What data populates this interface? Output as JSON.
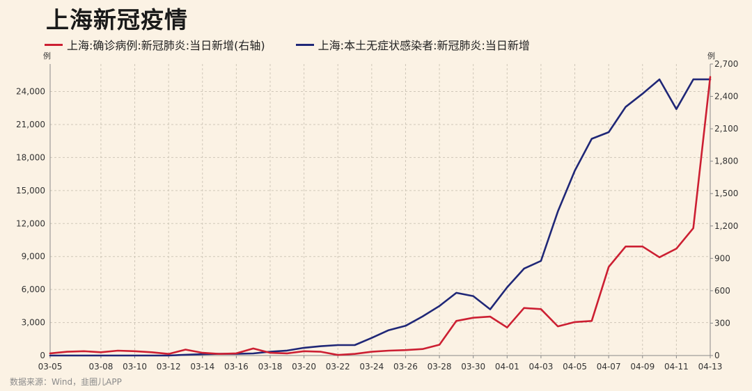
{
  "title": "上海新冠疫情",
  "source": "数据来源：Wind，韭圈儿APP",
  "colors": {
    "red": "#cc1f32",
    "blue": "#1f2777",
    "grid": "#cfc7b8",
    "text": "#333333",
    "background": "#fbf2e4"
  },
  "chart_data": {
    "type": "line",
    "title": "上海新冠疫情",
    "legend_position": "top-left",
    "grid": true,
    "x": [
      "03-05",
      "03-06",
      "03-07",
      "03-08",
      "03-09",
      "03-10",
      "03-11",
      "03-12",
      "03-13",
      "03-14",
      "03-15",
      "03-16",
      "03-17",
      "03-18",
      "03-19",
      "03-20",
      "03-21",
      "03-22",
      "03-23",
      "03-24",
      "03-25",
      "03-26",
      "03-27",
      "03-28",
      "03-29",
      "03-30",
      "03-31",
      "04-01",
      "04-02",
      "04-03",
      "04-04",
      "04-05",
      "04-06",
      "04-07",
      "04-08",
      "04-09",
      "04-10",
      "04-11",
      "04-12",
      "04-13"
    ],
    "xticks": [
      "03-05",
      "03-08",
      "03-10",
      "03-12",
      "03-14",
      "03-16",
      "03-18",
      "03-20",
      "03-22",
      "03-24",
      "03-26",
      "03-28",
      "03-30",
      "04-01",
      "04-03",
      "04-05",
      "04-07",
      "04-09",
      "04-11",
      "04-13"
    ],
    "y_left": {
      "unit": "例",
      "ylim": [
        0,
        26500
      ],
      "ticks": [
        0,
        3000,
        6000,
        9000,
        12000,
        15000,
        18000,
        21000,
        24000
      ],
      "tick_labels": [
        "0",
        "3,000",
        "6,000",
        "9,000",
        "12,000",
        "15,000",
        "18,000",
        "21,000",
        "24,000"
      ]
    },
    "y_right": {
      "unit": "例",
      "ylim": [
        0,
        2700
      ],
      "ticks": [
        0,
        300,
        600,
        900,
        1200,
        1500,
        1800,
        2100,
        2400,
        2700
      ],
      "tick_labels": [
        "0",
        "300",
        "600",
        "900",
        "1,200",
        "1,500",
        "1,800",
        "2,100",
        "2,400",
        "2,700"
      ]
    },
    "series": [
      {
        "name": "上海:确诊病例:新冠肺炎:当日新增(右轴)",
        "axis": "right",
        "color": "#cc1f32",
        "values": [
          20,
          35,
          40,
          30,
          45,
          40,
          30,
          15,
          55,
          25,
          15,
          20,
          65,
          25,
          20,
          40,
          35,
          5,
          15,
          35,
          45,
          50,
          60,
          100,
          320,
          350,
          360,
          260,
          440,
          430,
          270,
          310,
          320,
          820,
          1010,
          1010,
          910,
          990,
          1180,
          2580
        ]
      },
      {
        "name": "上海:本土无症状感染者:新冠肺炎:当日新增",
        "axis": "left",
        "color": "#1f2777",
        "values": [
          0,
          0,
          0,
          0,
          0,
          0,
          0,
          0,
          70,
          120,
          150,
          150,
          190,
          350,
          450,
          700,
          850,
          950,
          950,
          1600,
          2300,
          2700,
          3550,
          4500,
          5700,
          5400,
          4200,
          6200,
          7900,
          8600,
          13100,
          16800,
          19700,
          20300,
          22600,
          23800,
          25100,
          22400,
          25100,
          25100
        ]
      }
    ]
  }
}
